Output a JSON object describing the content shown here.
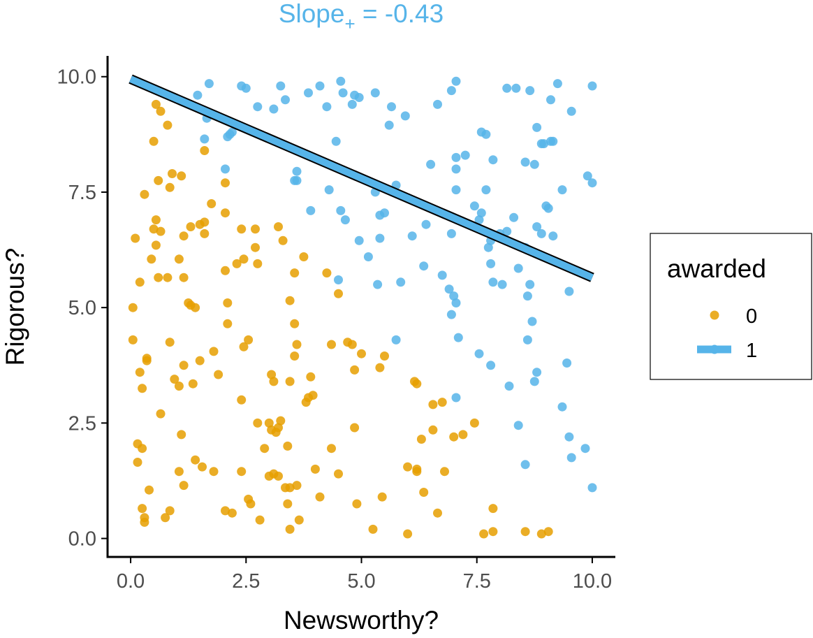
{
  "chart_data": {
    "type": "scatter",
    "title": "Slope",
    "title_subscript": "+",
    "title_value": " = -0.43",
    "xlabel": "Newsworthy?",
    "ylabel": "Rigorous?",
    "xlim": [
      -0.5,
      10.5
    ],
    "ylim": [
      -0.4,
      10.45
    ],
    "x_ticks": [
      {
        "value": 0,
        "label": "0.0"
      },
      {
        "value": 2.5,
        "label": "2.5"
      },
      {
        "value": 5,
        "label": "5.0"
      },
      {
        "value": 7.5,
        "label": "7.5"
      },
      {
        "value": 10,
        "label": "10.0"
      }
    ],
    "y_ticks": [
      {
        "value": 0,
        "label": "0.0"
      },
      {
        "value": 2.5,
        "label": "2.5"
      },
      {
        "value": 5,
        "label": "5.0"
      },
      {
        "value": 7.5,
        "label": "7.5"
      },
      {
        "value": 10,
        "label": "10.0"
      }
    ],
    "grid": false,
    "legend": {
      "title": "awarded",
      "position": "right",
      "entries": [
        {
          "label": "0",
          "color": "#E69F00"
        },
        {
          "label": "1",
          "color": "#56B4E9"
        }
      ]
    },
    "fit_line": {
      "series": "1",
      "slope": -0.43,
      "x": [
        0,
        10
      ],
      "y": [
        9.95,
        5.65
      ],
      "color": "#56B4E9"
    },
    "series": [
      {
        "name": "0",
        "color": "#E69F00",
        "x": [
          0.55,
          0.65,
          0.8,
          0.5,
          1.6,
          0.6,
          1.1,
          0.9,
          2.05,
          0.3,
          0.85,
          1.75,
          2.05,
          0.1,
          1.5,
          1.6,
          0.55,
          1.3,
          0.65,
          0.5,
          2.7,
          3.2,
          2.4,
          1.15,
          1.6,
          2.7,
          3.3,
          3.75,
          0.55,
          0.45,
          2.3,
          0.2,
          1.05,
          2.45,
          2.75,
          2.05,
          3.55,
          4.25,
          0.6,
          0.8,
          1.15,
          0.05,
          1.3,
          1.4,
          2.1,
          4.5,
          0.05,
          3.45,
          2.1,
          1.25,
          0.85,
          2.55,
          3.55,
          3.6,
          4.35,
          4.7,
          4.8,
          2.45,
          1.5,
          1.8,
          0.35,
          0.35,
          3.55,
          5.0,
          1.15,
          1.9,
          3.05,
          0.2,
          5.4,
          5.5,
          4.85,
          3.9,
          3.45,
          0.95,
          1.35,
          1.05,
          0.25,
          6.2,
          6.15,
          3.1,
          3.85,
          3.95,
          2.4,
          3.8,
          6.55,
          6.75,
          0.65,
          2.75,
          3.0,
          3.25,
          3.2,
          3.05,
          3.15,
          7.45,
          1.1,
          7.2,
          7.0,
          6.3,
          6.55,
          4.85,
          0.15,
          3.4,
          0.25,
          2.9,
          4.35,
          1.4,
          0.15,
          6.0,
          1.55,
          1.05,
          6.2,
          6.2,
          4.0,
          1.8,
          3.1,
          6.8,
          2.4,
          3.0,
          3.2,
          3.45,
          3.6,
          4.5,
          0.4,
          1.15,
          6.35,
          4.1,
          3.35,
          5.45,
          2.55,
          3.4,
          4.9,
          2.6,
          7.85,
          2.2,
          0.75,
          0.3,
          0.25,
          3.65,
          2.8,
          2.05,
          0.85,
          0.3,
          6.65,
          3.45,
          5.25,
          6.0,
          8.55,
          7.85,
          9.05,
          7.65,
          8.9
        ],
        "y": [
          9.4,
          9.25,
          8.95,
          8.6,
          8.4,
          7.75,
          7.85,
          7.9,
          7.7,
          7.45,
          7.6,
          7.25,
          7.05,
          6.5,
          6.8,
          6.85,
          6.9,
          6.75,
          6.65,
          6.7,
          6.7,
          6.75,
          6.7,
          6.55,
          6.6,
          6.3,
          6.45,
          6.1,
          6.35,
          6.05,
          5.95,
          5.55,
          6.05,
          6.05,
          5.95,
          5.8,
          5.75,
          5.75,
          5.65,
          5.65,
          5.65,
          5.0,
          5.05,
          5.0,
          4.65,
          5.3,
          4.3,
          5.15,
          5.1,
          5.1,
          4.25,
          4.3,
          4.65,
          4.2,
          4.2,
          4.25,
          4.2,
          4.15,
          3.85,
          4.05,
          3.85,
          3.9,
          3.95,
          4.0,
          3.75,
          3.55,
          3.55,
          3.6,
          3.7,
          3.95,
          3.65,
          3.5,
          3.4,
          3.45,
          3.35,
          3.3,
          3.25,
          3.35,
          3.4,
          3.4,
          3.05,
          3.1,
          3.0,
          2.95,
          2.9,
          2.95,
          2.7,
          2.5,
          2.5,
          2.55,
          2.4,
          2.35,
          2.3,
          2.5,
          2.25,
          2.25,
          2.2,
          2.15,
          2.35,
          2.4,
          2.05,
          2.0,
          1.95,
          1.95,
          1.95,
          1.7,
          1.65,
          1.55,
          1.55,
          1.45,
          1.5,
          1.45,
          1.5,
          1.45,
          1.4,
          1.45,
          1.45,
          1.35,
          1.35,
          1.1,
          1.15,
          1.4,
          1.05,
          1.15,
          1.0,
          0.9,
          1.1,
          0.9,
          0.85,
          0.75,
          0.75,
          0.75,
          0.65,
          0.55,
          0.45,
          0.35,
          0.65,
          0.4,
          0.4,
          0.6,
          0.6,
          0.45,
          0.55,
          0.2,
          0.2,
          0.1,
          0.15,
          0.15,
          0.15,
          0.1,
          0.1
        ]
      },
      {
        "name": "1",
        "color": "#56B4E9",
        "x": [
          4.55,
          7.05,
          9.25,
          10.0,
          1.7,
          2.4,
          2.5,
          3.25,
          4.1,
          1.45,
          3.35,
          3.85,
          4.6,
          4.85,
          5.3,
          6.95,
          8.15,
          8.35,
          8.65,
          9.1,
          4.95,
          4.25,
          1.65,
          2.75,
          3.1,
          4.8,
          5.65,
          5.95,
          6.65,
          9.55,
          5.6,
          1.6,
          2.15,
          2.1,
          2.2,
          4.45,
          7.6,
          7.7,
          8.8,
          8.9,
          8.95,
          9.1,
          9.15,
          7.05,
          7.25,
          6.5,
          8.55,
          8.75,
          9.9,
          2.05,
          3.6,
          7.05,
          7.85,
          3.55,
          3.6,
          5.75,
          10.0,
          4.3,
          5.3,
          7.05,
          7.7,
          9.35,
          3.9,
          5.4,
          5.5,
          9.0,
          9.05,
          7.45,
          7.6,
          4.55,
          6.4,
          8.3,
          4.65,
          7.55,
          8.8,
          6.95,
          8.15,
          8.9,
          9.15,
          8.0,
          6.1,
          4.95,
          5.4,
          7.8,
          7.75,
          8.55,
          8.4,
          5.15,
          7.8,
          6.35,
          6.75,
          7.85,
          8.05,
          8.65,
          4.5,
          5.85,
          5.35,
          9.5,
          6.9,
          7.0,
          7.05,
          8.6,
          6.95,
          8.7,
          7.1,
          8.6,
          5.75,
          7.55,
          9.45,
          8.8,
          8.75,
          7.8,
          8.2,
          7.05,
          9.35,
          8.4,
          9.5,
          9.85,
          9.55,
          8.55,
          10.0
        ],
        "y": [
          9.9,
          9.9,
          9.85,
          9.8,
          9.85,
          9.8,
          9.75,
          9.8,
          9.8,
          9.6,
          9.5,
          9.65,
          9.65,
          9.6,
          9.65,
          9.7,
          9.75,
          9.75,
          9.7,
          9.5,
          9.55,
          9.35,
          9.1,
          9.35,
          9.3,
          9.4,
          9.35,
          9.15,
          9.4,
          9.25,
          8.95,
          8.65,
          8.75,
          8.7,
          8.8,
          8.6,
          8.8,
          8.75,
          8.9,
          8.55,
          8.55,
          8.6,
          8.6,
          8.25,
          8.3,
          8.1,
          8.15,
          8.1,
          7.85,
          8.0,
          7.95,
          8.0,
          8.2,
          7.75,
          7.75,
          7.65,
          7.7,
          7.55,
          7.5,
          7.55,
          7.55,
          7.55,
          7.1,
          7.0,
          7.05,
          7.2,
          7.15,
          7.2,
          7.05,
          7.1,
          6.8,
          6.95,
          6.9,
          6.9,
          6.75,
          6.6,
          6.65,
          6.6,
          6.55,
          6.6,
          6.55,
          6.45,
          6.5,
          6.45,
          6.3,
          6.3,
          5.85,
          6.1,
          5.95,
          5.9,
          5.7,
          5.55,
          5.5,
          5.5,
          5.6,
          5.55,
          5.5,
          5.35,
          5.4,
          5.25,
          5.1,
          5.25,
          4.85,
          4.7,
          4.35,
          4.3,
          4.3,
          4.0,
          3.8,
          3.6,
          3.4,
          3.75,
          3.3,
          3.05,
          2.85,
          2.45,
          2.2,
          1.95,
          1.75,
          1.6,
          1.1
        ]
      }
    ]
  }
}
